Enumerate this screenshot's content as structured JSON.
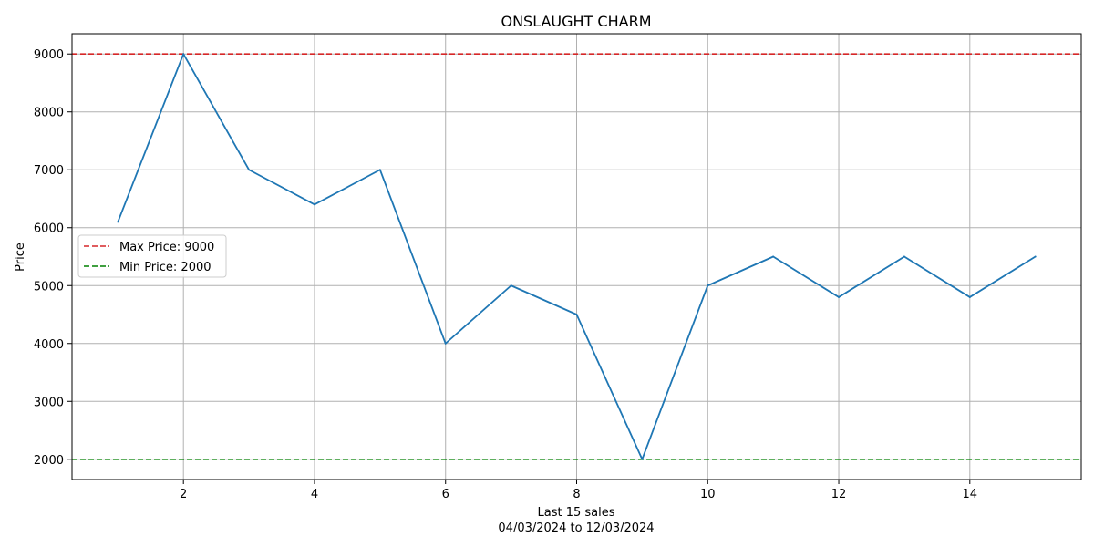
{
  "chart_data": {
    "type": "line",
    "title": "ONSLAUGHT CHARM",
    "xlabel": "Last 15 sales",
    "xlabel_sub": "04/03/2024 to 12/03/2024",
    "ylabel": "Price",
    "xlim": [
      0.3,
      15.7
    ],
    "ylim": [
      1650,
      9350
    ],
    "x_ticks": [
      2,
      4,
      6,
      8,
      10,
      12,
      14
    ],
    "y_ticks": [
      2000,
      3000,
      4000,
      5000,
      6000,
      7000,
      8000,
      9000
    ],
    "grid": true,
    "legend_position": "center-left",
    "x": [
      1,
      2,
      3,
      4,
      5,
      6,
      7,
      8,
      9,
      10,
      11,
      12,
      13,
      14,
      15
    ],
    "series": [
      {
        "values": [
          6100,
          9000,
          7000,
          6400,
          7000,
          4000,
          5000,
          4500,
          2000,
          5000,
          5500,
          4800,
          5500,
          4800,
          5500
        ],
        "color": "#1f77b4"
      }
    ],
    "reference_lines": [
      {
        "name": "Max Price: 9000",
        "value": 9000,
        "color": "#d62728",
        "style": "dashed"
      },
      {
        "name": "Min Price: 2000",
        "value": 2000,
        "color": "#008000",
        "style": "dashed"
      }
    ]
  }
}
